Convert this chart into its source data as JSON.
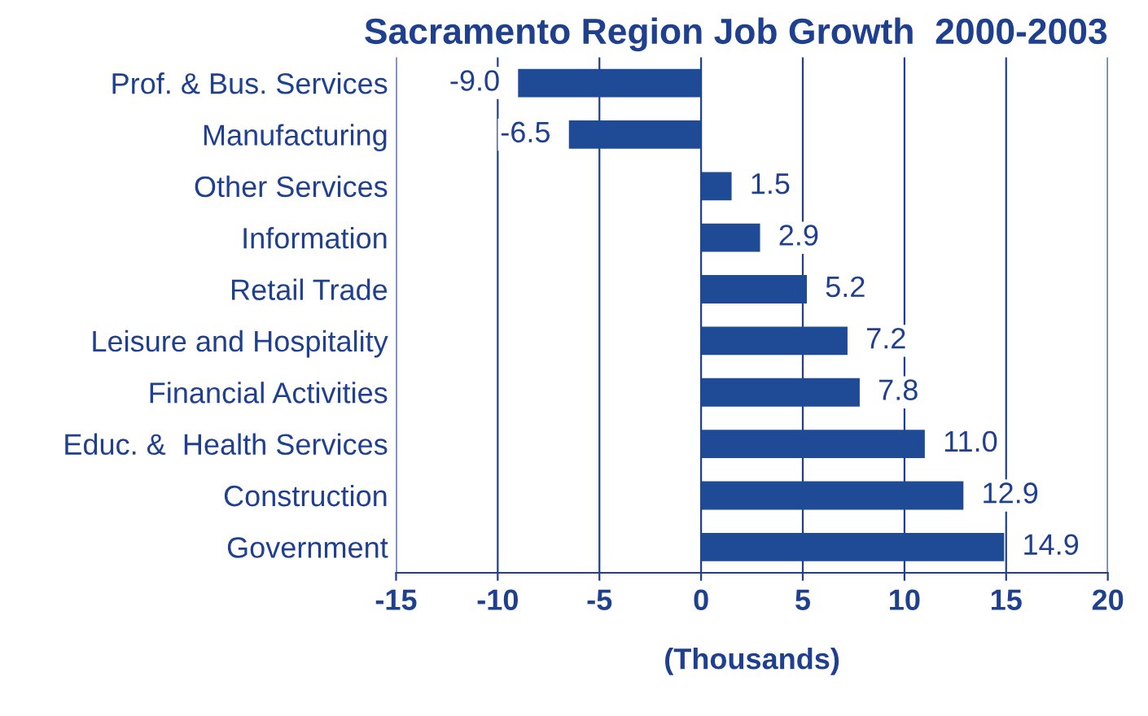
{
  "chart_data": {
    "type": "bar",
    "orientation": "horizontal",
    "title": "Sacramento Region Job Growth  2000-2003",
    "xlabel": "(Thousands)",
    "categories": [
      "Prof. & Bus. Services",
      "Manufacturing",
      "Other Services",
      "Information",
      "Retail Trade",
      "Leisure and Hospitality",
      "Financial Activities",
      "Educ. &  Health Services",
      "Construction",
      "Government"
    ],
    "values": [
      -9.0,
      -6.5,
      1.5,
      2.9,
      5.2,
      7.2,
      7.8,
      11.0,
      12.9,
      14.9
    ],
    "value_labels": [
      "-9.0",
      "-6.5",
      "1.5",
      "2.9",
      "5.2",
      "7.2",
      "7.8",
      "11.0",
      "12.9",
      "14.9"
    ],
    "color": "#1f4a96",
    "xlim": [
      -15,
      20
    ],
    "xticks": [
      -15,
      -10,
      -5,
      0,
      5,
      10,
      15,
      20
    ],
    "grid": "x"
  }
}
